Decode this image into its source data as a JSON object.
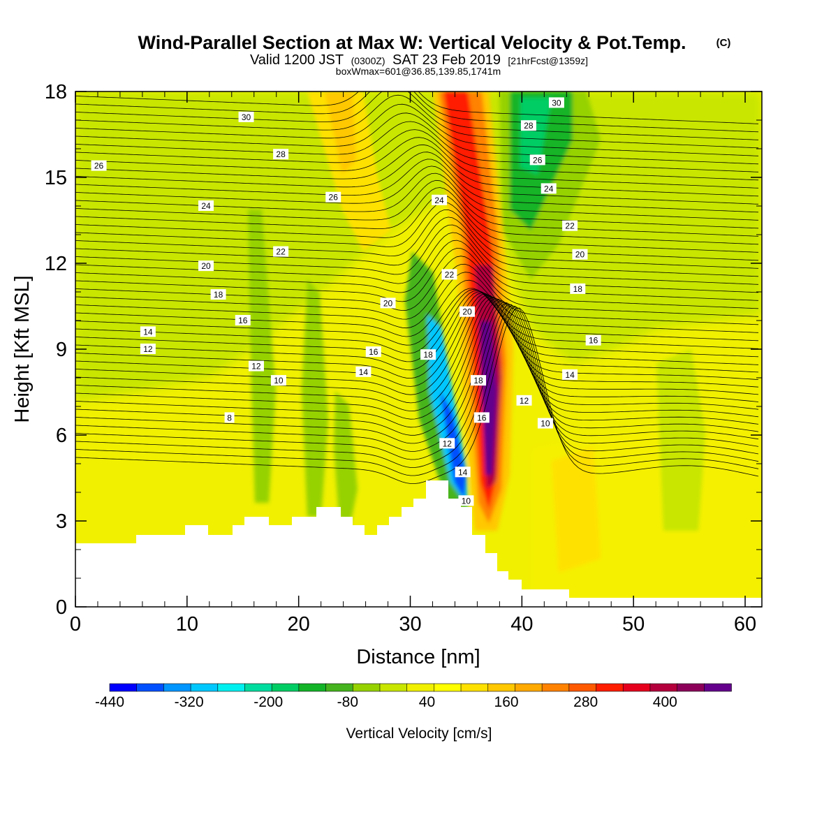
{
  "figure": {
    "title": "Wind-Parallel Section at Max W: Vertical Velocity & Pot.Temp.",
    "title_suffix": "(C)",
    "subtitle_parts": [
      "Valid 1200 JST",
      "(0300Z)",
      "SAT 23 Feb 2019",
      "[21hrFcst@1359z]"
    ],
    "subsubtitle": "boxWmax=601@36.85,139.85,1741m"
  },
  "chart_data": {
    "type": "heatmap",
    "xlabel": "Distance [nm]",
    "ylabel": "Height [Kft MSL]",
    "xlim": [
      0,
      61.5
    ],
    "ylim": [
      0,
      18
    ],
    "x_ticks": [
      0,
      10,
      20,
      30,
      40,
      50,
      60
    ],
    "y_ticks": [
      0,
      3,
      6,
      9,
      12,
      15,
      18
    ],
    "colorbar": {
      "label": "Vertical Velocity [cm/s]",
      "min": -440,
      "max": 500,
      "tick_values": [
        -440,
        -320,
        -200,
        -80,
        40,
        160,
        280,
        400
      ],
      "colors": [
        "#0000ff",
        "#0050ff",
        "#0096ff",
        "#00c8ff",
        "#00f0f0",
        "#00dca0",
        "#00cd64",
        "#14b428",
        "#46b41e",
        "#96d200",
        "#c8e600",
        "#f0f000",
        "#ffff00",
        "#ffe100",
        "#ffc800",
        "#ffaa00",
        "#ff8200",
        "#ff5a00",
        "#ff1e00",
        "#e6001e",
        "#b4003c",
        "#8c005a",
        "#64008c"
      ]
    },
    "isentrope_labels": [
      {
        "x": 2.1,
        "y": 15.4,
        "text": "26"
      },
      {
        "x": 15.3,
        "y": 17.1,
        "text": "30"
      },
      {
        "x": 18.4,
        "y": 15.8,
        "text": "28"
      },
      {
        "x": 23.1,
        "y": 14.3,
        "text": "26"
      },
      {
        "x": 11.7,
        "y": 14.0,
        "text": "24"
      },
      {
        "x": 18.4,
        "y": 12.4,
        "text": "22"
      },
      {
        "x": 11.7,
        "y": 11.9,
        "text": "20"
      },
      {
        "x": 12.8,
        "y": 10.9,
        "text": "18"
      },
      {
        "x": 15.0,
        "y": 10.0,
        "text": "16"
      },
      {
        "x": 6.5,
        "y": 9.6,
        "text": "14"
      },
      {
        "x": 6.5,
        "y": 9.0,
        "text": "12"
      },
      {
        "x": 16.2,
        "y": 8.4,
        "text": "12"
      },
      {
        "x": 18.2,
        "y": 7.9,
        "text": "10"
      },
      {
        "x": 26.7,
        "y": 8.9,
        "text": "16"
      },
      {
        "x": 25.8,
        "y": 8.2,
        "text": "14"
      },
      {
        "x": 28.0,
        "y": 10.6,
        "text": "20"
      },
      {
        "x": 13.8,
        "y": 6.6,
        "text": "8"
      },
      {
        "x": 32.6,
        "y": 14.2,
        "text": "24"
      },
      {
        "x": 33.5,
        "y": 11.6,
        "text": "22"
      },
      {
        "x": 35.1,
        "y": 10.3,
        "text": "20"
      },
      {
        "x": 31.6,
        "y": 8.8,
        "text": "18"
      },
      {
        "x": 33.3,
        "y": 5.7,
        "text": "12"
      },
      {
        "x": 34.7,
        "y": 4.7,
        "text": "14"
      },
      {
        "x": 35.0,
        "y": 3.7,
        "text": "10"
      },
      {
        "x": 36.1,
        "y": 7.9,
        "text": "18"
      },
      {
        "x": 36.4,
        "y": 6.6,
        "text": "16"
      },
      {
        "x": 43.1,
        "y": 17.6,
        "text": "30"
      },
      {
        "x": 40.6,
        "y": 16.8,
        "text": "28"
      },
      {
        "x": 41.4,
        "y": 15.6,
        "text": "26"
      },
      {
        "x": 42.4,
        "y": 14.6,
        "text": "24"
      },
      {
        "x": 44.3,
        "y": 13.3,
        "text": "22"
      },
      {
        "x": 45.2,
        "y": 12.3,
        "text": "20"
      },
      {
        "x": 45.0,
        "y": 11.1,
        "text": "18"
      },
      {
        "x": 46.4,
        "y": 9.3,
        "text": "16"
      },
      {
        "x": 44.3,
        "y": 8.1,
        "text": "14"
      },
      {
        "x": 40.2,
        "y": 7.2,
        "text": "12"
      },
      {
        "x": 42.1,
        "y": 6.4,
        "text": "10"
      }
    ]
  }
}
